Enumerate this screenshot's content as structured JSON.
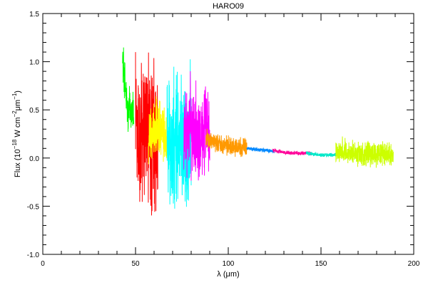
{
  "chart_data": {
    "type": "line",
    "title": "HARO09",
    "xlabel": "λ (μm)",
    "ylabel_main": "Flux (10",
    "ylabel_exp1": "−18",
    "ylabel_mid": " W cm",
    "ylabel_exp2": "−2",
    "ylabel_um": "μm",
    "ylabel_exp3": "−1",
    "ylabel_end": ")",
    "xlim": [
      0,
      200
    ],
    "ylim": [
      -1.0,
      1.5
    ],
    "xticks": [
      0,
      50,
      100,
      150,
      200
    ],
    "xtick_labels": [
      "0",
      "50",
      "100",
      "150",
      "200"
    ],
    "yticks": [
      -1.0,
      -0.5,
      0.0,
      0.5,
      1.0,
      1.5
    ],
    "ytick_labels": [
      "-1.0",
      "-0.5",
      "0.0",
      "0.5",
      "1.0",
      "1.5"
    ],
    "grid": false,
    "series": [
      {
        "color": "#00ff00",
        "x_range": [
          43,
          49
        ],
        "noise": 0.22,
        "x": [
          43,
          44,
          45,
          46,
          47,
          48,
          49
        ],
        "y": [
          1.05,
          0.85,
          0.62,
          0.45,
          0.55,
          0.5,
          0.48
        ]
      },
      {
        "color": "#ff0000",
        "x_range": [
          50,
          62
        ],
        "noise": 0.8,
        "x": [
          50,
          52,
          54,
          56,
          58,
          60,
          62
        ],
        "y": [
          0.3,
          0.15,
          0.2,
          0.25,
          0.2,
          0.15,
          0.1
        ]
      },
      {
        "color": "#ffff00",
        "x_range": [
          57,
          67
        ],
        "noise": 0.28,
        "x": [
          57,
          60,
          63,
          65,
          67
        ],
        "y": [
          0.2,
          0.3,
          0.28,
          0.25,
          0.22
        ]
      },
      {
        "color": "#00ffff",
        "x_range": [
          67,
          80
        ],
        "noise": 0.7,
        "x": [
          67,
          70,
          73,
          76,
          78,
          80
        ],
        "y": [
          0.25,
          0.05,
          0.15,
          0.2,
          0.1,
          0.15
        ]
      },
      {
        "color": "#ff00ff",
        "x_range": [
          76,
          90
        ],
        "noise": 0.45,
        "x": [
          76,
          79,
          82,
          85,
          88,
          90
        ],
        "y": [
          0.3,
          0.35,
          0.25,
          0.3,
          0.25,
          0.2
        ]
      },
      {
        "color": "#ff9900",
        "x_range": [
          88,
          110
        ],
        "noise": 0.09,
        "x": [
          88,
          92,
          96,
          100,
          105,
          110
        ],
        "y": [
          0.2,
          0.18,
          0.15,
          0.13,
          0.12,
          0.11
        ]
      },
      {
        "color": "#0088ff",
        "x_range": [
          110,
          125
        ],
        "noise": 0.02,
        "x": [
          110,
          115,
          120,
          125
        ],
        "y": [
          0.1,
          0.09,
          0.08,
          0.07
        ]
      },
      {
        "color": "#ff0099",
        "x_range": [
          124,
          145
        ],
        "noise": 0.02,
        "x": [
          124,
          130,
          135,
          140,
          145
        ],
        "y": [
          0.08,
          0.06,
          0.05,
          0.05,
          0.05
        ]
      },
      {
        "color": "#00e8c8",
        "x_range": [
          142,
          160
        ],
        "noise": 0.02,
        "x": [
          142,
          146,
          150,
          155,
          160
        ],
        "y": [
          0.05,
          0.04,
          0.03,
          0.03,
          0.04
        ]
      },
      {
        "color": "#ccff00",
        "x_range": [
          158,
          189
        ],
        "noise": 0.12,
        "x": [
          158,
          165,
          170,
          175,
          180,
          185,
          189
        ],
        "y": [
          0.08,
          0.06,
          0.05,
          0.04,
          0.04,
          0.03,
          0.01
        ]
      }
    ]
  }
}
